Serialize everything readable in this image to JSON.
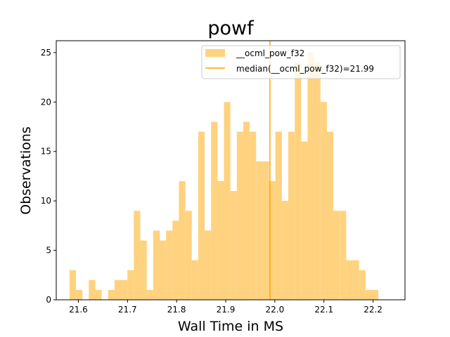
{
  "chart_data": {
    "type": "bar",
    "title": "powf",
    "xlabel": "Wall Time in MS",
    "ylabel": "Observations",
    "xlim": [
      21.555,
      22.265
    ],
    "ylim": [
      0,
      26.2
    ],
    "xticks": [
      21.6,
      21.7,
      21.8,
      21.9,
      22.0,
      22.1,
      22.2
    ],
    "xtick_labels": [
      "21.6",
      "21.7",
      "21.8",
      "21.9",
      "22.0",
      "22.1",
      "22.2"
    ],
    "yticks": [
      0,
      5,
      10,
      15,
      20,
      25
    ],
    "ytick_labels": [
      "0",
      "5",
      "10",
      "15",
      "20",
      "25"
    ],
    "bin_start": 21.582,
    "bin_width": 0.0131,
    "series": [
      {
        "name": "__ocml_pow_f32",
        "type": "histogram",
        "color": "#ffd27f",
        "counts": [
          3,
          1,
          0,
          2,
          1,
          0,
          1,
          2,
          2,
          3,
          9,
          6,
          1,
          7,
          6,
          7,
          8,
          12,
          9,
          4,
          17,
          7,
          18,
          12,
          20,
          11,
          17,
          18,
          17,
          14,
          14,
          12,
          17,
          10,
          17,
          24,
          16,
          25,
          24,
          20,
          17,
          9,
          9,
          4,
          4,
          3,
          1,
          1
        ]
      },
      {
        "name": "median(__ocml_pow_f32)=21.99",
        "type": "vline",
        "x": 21.99,
        "color": "#ffa500"
      }
    ],
    "legend": {
      "position": "top-right",
      "entries": [
        "__ocml_pow_f32",
        "median(__ocml_pow_f32)=21.99"
      ]
    },
    "grid": false
  }
}
